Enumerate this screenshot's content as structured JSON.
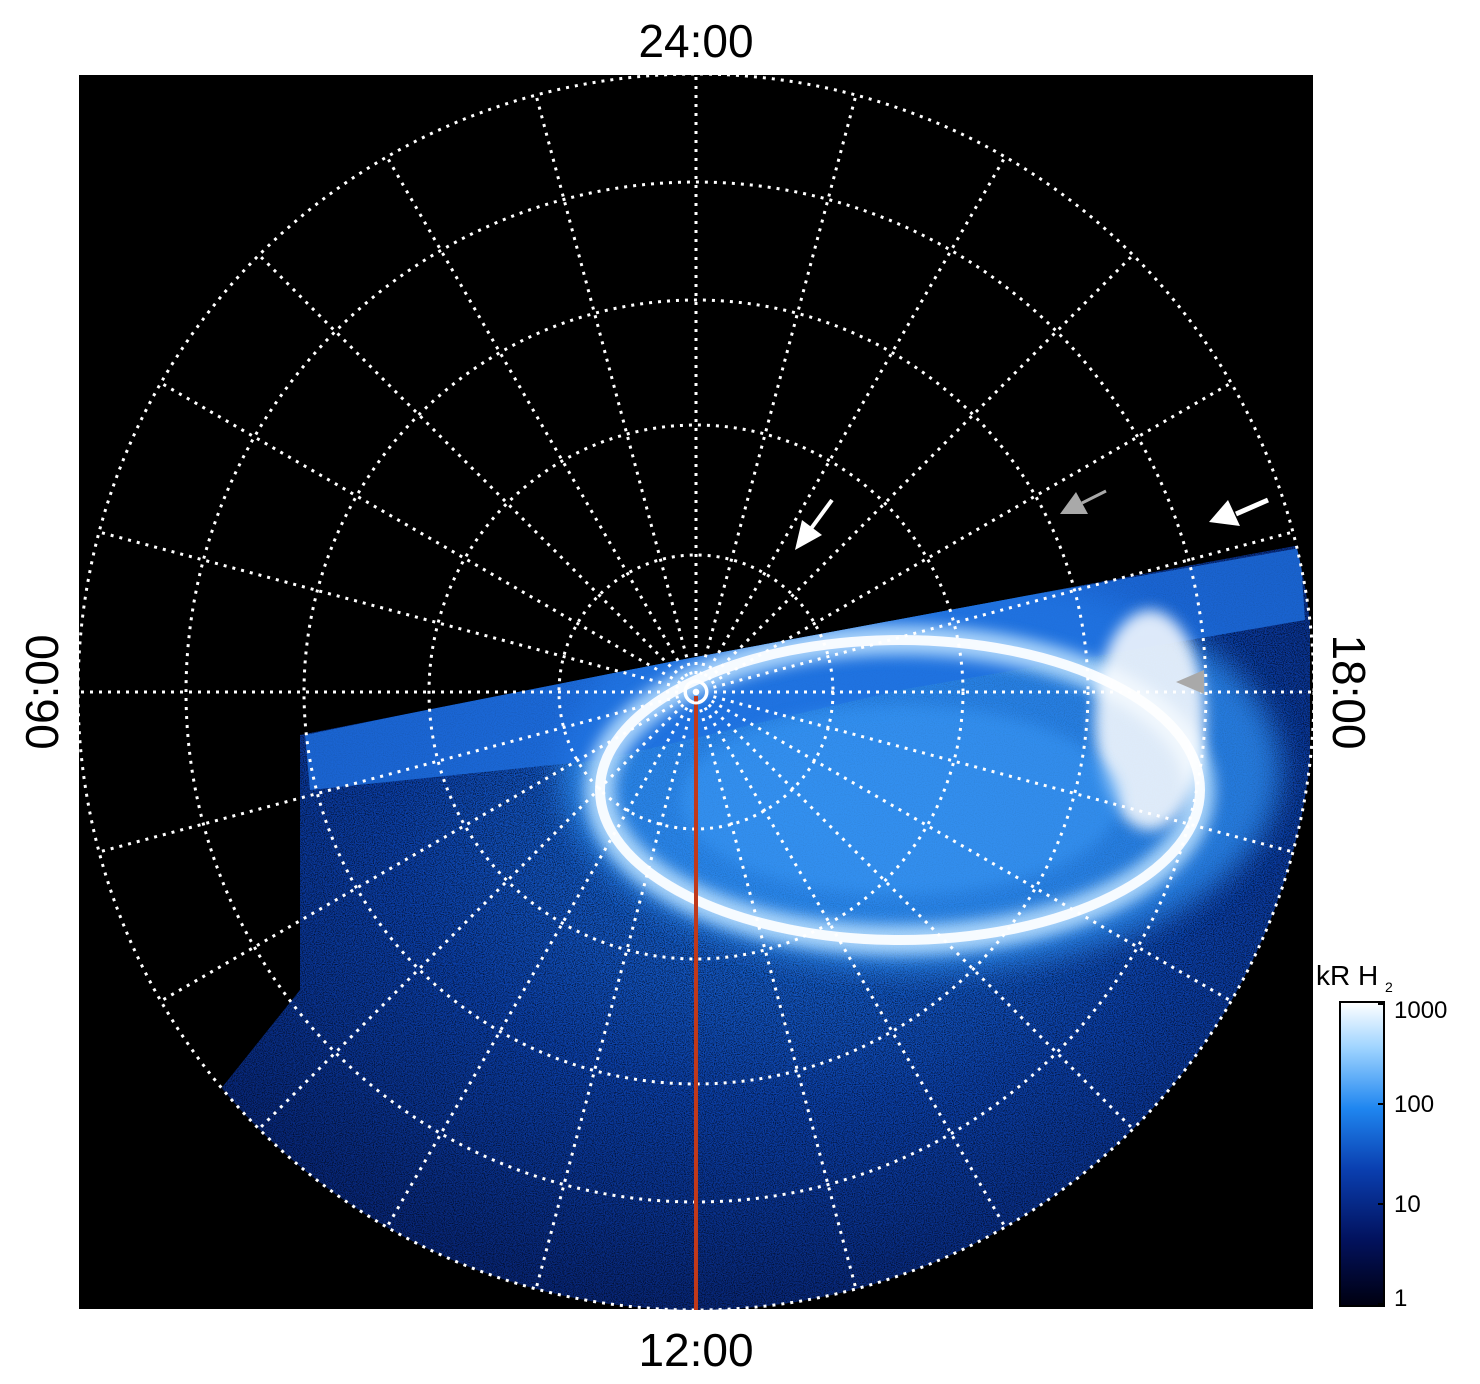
{
  "image": {
    "description_labels": {
      "top": "24:00",
      "bottom": "12:00",
      "left": "06:00",
      "right": "18:00"
    },
    "colorbar": {
      "title_main": "kR H",
      "title_sub": "2",
      "ticks": [
        "1000",
        "100",
        "10",
        "1"
      ],
      "scale": "log",
      "colors": [
        "#000010",
        "#02125e",
        "#0a3fb0",
        "#1f86f0",
        "#9fd4ff",
        "#ffffff"
      ]
    },
    "colors": {
      "background": "#000000",
      "grid": "#ffffff",
      "meridian_line": "#c0391b",
      "aurora_core": "#ffffff",
      "aurora_glow": "#2b8cf0",
      "arrow_white": "#ffffff",
      "arrow_gray": "#a9a9a9"
    }
  }
}
